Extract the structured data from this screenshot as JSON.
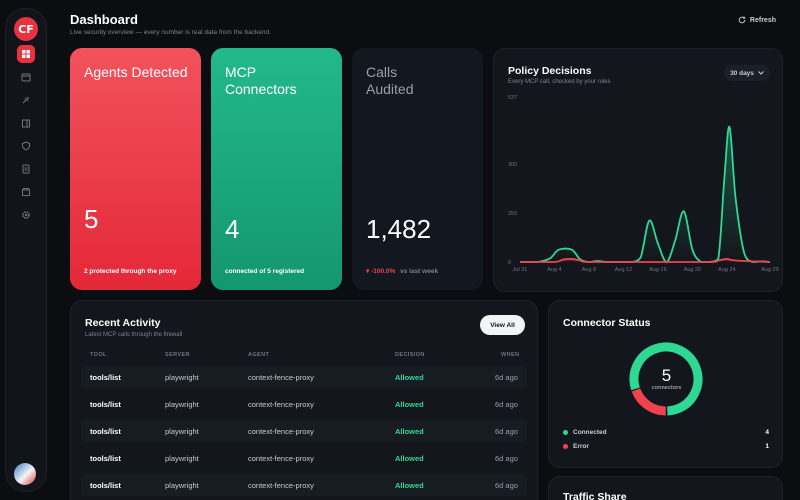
{
  "app": {
    "logo_text": "CF"
  },
  "sidebar": {
    "items": [
      {
        "icon": "grid-icon",
        "active": true
      },
      {
        "icon": "calendar-icon",
        "active": false
      },
      {
        "icon": "plug-icon",
        "active": false
      },
      {
        "icon": "book-icon",
        "active": false
      },
      {
        "icon": "shield-icon",
        "active": false
      },
      {
        "icon": "document-icon",
        "active": false
      },
      {
        "icon": "store-icon",
        "active": false
      },
      {
        "icon": "gear-icon",
        "active": false
      }
    ]
  },
  "header": {
    "title": "Dashboard",
    "subtitle": "Live security overview — every number is real data from the backend.",
    "refresh_label": "Refresh"
  },
  "stats": {
    "agents": {
      "title": "Agents Detected",
      "value": "5",
      "foot": "2 protected through the proxy"
    },
    "connectors": {
      "title": "MCP Connectors",
      "value": "4",
      "foot": "connected of 5 registered"
    },
    "calls": {
      "title": "Calls Audited",
      "value": "1,482",
      "delta": "-100.0%",
      "delta_suffix": "vs last week"
    }
  },
  "policy": {
    "title": "Policy Decisions",
    "subtitle": "Every MCP call, checked by your rules",
    "range_label": "30 days"
  },
  "chart_data": {
    "type": "area",
    "title": "Policy Decisions",
    "ylim": [
      0,
      537
    ],
    "y_ticks": [
      "537",
      "300",
      "250",
      "0"
    ],
    "x_tick_labels": [
      "Jul 31",
      "Aug 4",
      "Aug 8",
      "Aug 12",
      "Aug 16",
      "Aug 20",
      "Aug 24",
      "Aug 29"
    ],
    "colors": {
      "allowed": "#2fd892",
      "blocked": "#f0434f"
    },
    "series": [
      {
        "key": "allowed",
        "x": [
          0,
          2,
          3.5,
          4.5,
          6,
          7,
          8,
          9,
          10,
          11,
          12,
          13,
          14,
          15,
          16,
          17,
          18,
          19,
          20,
          21,
          22,
          23,
          23.7,
          24.3,
          25,
          26,
          27,
          28,
          29
        ],
        "values": [
          0,
          0,
          12,
          40,
          40,
          8,
          0,
          3,
          0,
          0,
          0,
          0,
          15,
          135,
          60,
          0,
          70,
          165,
          40,
          0,
          0,
          10,
          270,
          440,
          210,
          30,
          0,
          2,
          0
        ]
      },
      {
        "key": "blocked",
        "x": [
          0,
          4,
          5,
          6,
          7,
          8,
          15,
          22,
          23,
          24,
          25,
          29
        ],
        "values": [
          0,
          0,
          8,
          10,
          5,
          0,
          0,
          0,
          5,
          10,
          5,
          0
        ]
      }
    ]
  },
  "activity": {
    "title": "Recent Activity",
    "subtitle": "Latest MCP calls through the firewall",
    "view_all_label": "View All",
    "columns": [
      "TOOL",
      "SERVER",
      "AGENT",
      "DECISION",
      "WHEN"
    ],
    "rows": [
      {
        "tool": "tools/list",
        "server": "playwright",
        "agent": "context-fence-proxy",
        "decision": "Allowed",
        "when": "6d ago"
      },
      {
        "tool": "tools/list",
        "server": "playwright",
        "agent": "context-fence-proxy",
        "decision": "Allowed",
        "when": "6d ago"
      },
      {
        "tool": "tools/list",
        "server": "playwright",
        "agent": "context-fence-proxy",
        "decision": "Allowed",
        "when": "6d ago"
      },
      {
        "tool": "tools/list",
        "server": "playwright",
        "agent": "context-fence-proxy",
        "decision": "Allowed",
        "when": "6d ago"
      },
      {
        "tool": "tools/list",
        "server": "playwright",
        "agent": "context-fence-proxy",
        "decision": "Allowed",
        "when": "6d ago"
      }
    ]
  },
  "connector_status": {
    "title": "Connector Status",
    "total": "5",
    "total_label": "connectors",
    "legend": [
      {
        "label": "Connected",
        "count": "4",
        "color": "#2fd892",
        "value": 4
      },
      {
        "label": "Error",
        "count": "1",
        "color": "#f0434f",
        "value": 1
      }
    ]
  },
  "traffic": {
    "title": "Traffic Share"
  }
}
